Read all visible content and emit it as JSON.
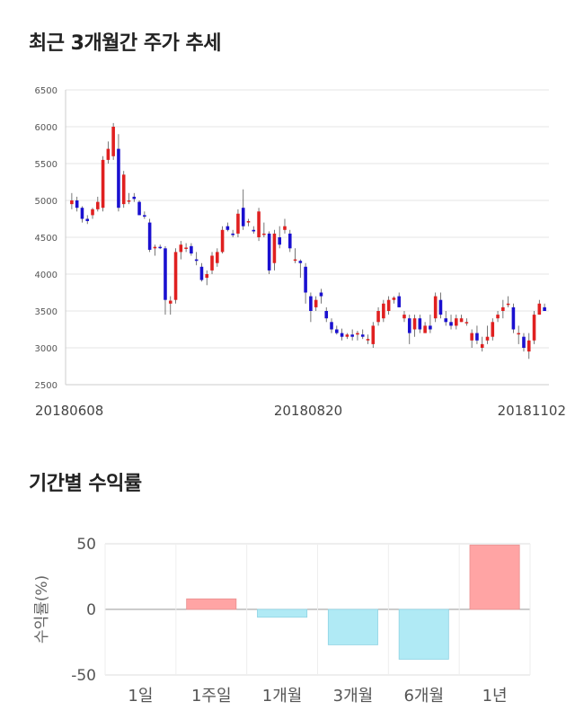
{
  "titles": {
    "price_trend": "최근 3개월간 주가 추세",
    "period_returns": "기간별 수익률"
  },
  "chart_data": [
    {
      "type": "candlestick",
      "ylim": [
        2500,
        6500
      ],
      "y_ticks": [
        2500,
        3000,
        3500,
        4000,
        4500,
        5000,
        5500,
        6000,
        6500
      ],
      "x_tick_labels": [
        "20180608",
        "20180820",
        "20181102"
      ],
      "up_color": "#e02020",
      "down_color": "#1a10d0",
      "grid": true,
      "candles": [
        [
          4950,
          5100,
          4880,
          5000
        ],
        [
          5000,
          5050,
          4850,
          4900
        ],
        [
          4900,
          4920,
          4700,
          4750
        ],
        [
          4750,
          4800,
          4680,
          4720
        ],
        [
          4800,
          4900,
          4750,
          4880
        ],
        [
          4880,
          5050,
          4850,
          4980
        ],
        [
          4900,
          5600,
          4850,
          5550
        ],
        [
          5550,
          5800,
          5500,
          5700
        ],
        [
          5600,
          6050,
          5550,
          6000
        ],
        [
          5700,
          5900,
          4850,
          4900
        ],
        [
          4950,
          5400,
          4900,
          5350
        ],
        [
          5000,
          5100,
          4950,
          5000
        ],
        [
          5050,
          5100,
          4980,
          5020
        ],
        [
          4980,
          5000,
          4800,
          4800
        ],
        [
          4800,
          4850,
          4750,
          4780
        ],
        [
          4700,
          4750,
          4300,
          4330
        ],
        [
          4350,
          4400,
          4250,
          4370
        ],
        [
          4370,
          4400,
          4340,
          4360
        ],
        [
          4350,
          4380,
          3450,
          3650
        ],
        [
          3600,
          3700,
          3450,
          3640
        ],
        [
          3650,
          4350,
          3600,
          4300
        ],
        [
          4300,
          4450,
          4200,
          4400
        ],
        [
          4350,
          4420,
          4300,
          4360
        ],
        [
          4380,
          4420,
          4250,
          4280
        ],
        [
          4200,
          4300,
          4120,
          4180
        ],
        [
          4100,
          4150,
          3900,
          3920
        ],
        [
          3950,
          4050,
          3850,
          4000
        ],
        [
          4050,
          4300,
          4000,
          4250
        ],
        [
          4150,
          4350,
          4100,
          4300
        ],
        [
          4300,
          4650,
          4280,
          4600
        ],
        [
          4650,
          4700,
          4580,
          4600
        ],
        [
          4550,
          4600,
          4500,
          4530
        ],
        [
          4550,
          4880,
          4500,
          4820
        ],
        [
          4900,
          5150,
          4600,
          4650
        ],
        [
          4700,
          4750,
          4650,
          4720
        ],
        [
          4600,
          4650,
          4550,
          4580
        ],
        [
          4500,
          4900,
          4450,
          4850
        ],
        [
          4550,
          4700,
          4500,
          4550
        ],
        [
          4550,
          4580,
          4000,
          4050
        ],
        [
          4150,
          4600,
          4050,
          4550
        ],
        [
          4500,
          4650,
          4350,
          4400
        ],
        [
          4600,
          4750,
          4550,
          4650
        ],
        [
          4550,
          4600,
          4300,
          4350
        ],
        [
          4200,
          4350,
          4150,
          4200
        ],
        [
          4180,
          4200,
          3950,
          4150
        ],
        [
          4100,
          4150,
          3600,
          3750
        ],
        [
          3700,
          3750,
          3350,
          3500
        ],
        [
          3550,
          3700,
          3500,
          3650
        ],
        [
          3750,
          3800,
          3600,
          3700
        ],
        [
          3500,
          3550,
          3350,
          3400
        ],
        [
          3350,
          3400,
          3200,
          3250
        ],
        [
          3250,
          3300,
          3180,
          3200
        ],
        [
          3200,
          3260,
          3100,
          3150
        ],
        [
          3150,
          3200,
          3120,
          3180
        ],
        [
          3180,
          3250,
          3100,
          3150
        ],
        [
          3180,
          3230,
          3100,
          3200
        ],
        [
          3180,
          3250,
          3120,
          3150
        ],
        [
          3100,
          3180,
          3050,
          3120
        ],
        [
          3050,
          3350,
          3000,
          3300
        ],
        [
          3350,
          3550,
          3300,
          3500
        ],
        [
          3400,
          3650,
          3350,
          3600
        ],
        [
          3500,
          3700,
          3450,
          3650
        ],
        [
          3650,
          3700,
          3600,
          3680
        ],
        [
          3700,
          3750,
          3550,
          3550
        ],
        [
          3400,
          3500,
          3350,
          3450
        ],
        [
          3400,
          3450,
          3050,
          3200
        ],
        [
          3250,
          3450,
          3150,
          3400
        ],
        [
          3400,
          3450,
          3200,
          3250
        ],
        [
          3200,
          3350,
          3200,
          3300
        ],
        [
          3300,
          3450,
          3200,
          3250
        ],
        [
          3400,
          3750,
          3350,
          3700
        ],
        [
          3650,
          3750,
          3400,
          3450
        ],
        [
          3400,
          3500,
          3300,
          3350
        ],
        [
          3350,
          3450,
          3250,
          3300
        ],
        [
          3300,
          3450,
          3250,
          3400
        ],
        [
          3350,
          3450,
          3350,
          3400
        ],
        [
          3350,
          3400,
          3300,
          3350
        ],
        [
          3100,
          3250,
          3000,
          3200
        ],
        [
          3200,
          3300,
          3050,
          3100
        ],
        [
          3000,
          3150,
          2950,
          3050
        ],
        [
          3100,
          3300,
          3050,
          3150
        ],
        [
          3150,
          3400,
          3100,
          3350
        ],
        [
          3400,
          3500,
          3350,
          3450
        ],
        [
          3500,
          3650,
          3400,
          3550
        ],
        [
          3600,
          3700,
          3550,
          3600
        ],
        [
          3550,
          3600,
          3200,
          3250
        ],
        [
          3200,
          3300,
          3050,
          3200
        ],
        [
          3150,
          3200,
          2950,
          3000
        ],
        [
          2950,
          3200,
          2850,
          3100
        ],
        [
          3100,
          3500,
          3050,
          3450
        ],
        [
          3450,
          3650,
          3450,
          3600
        ],
        [
          3550,
          3600,
          3500,
          3500
        ]
      ]
    },
    {
      "type": "bar",
      "categories": [
        "1일",
        "1주일",
        "1개월",
        "3개월",
        "6개월",
        "1년"
      ],
      "values": [
        0,
        8,
        -6,
        -27,
        -38,
        49
      ],
      "ylim": [
        -50,
        50
      ],
      "y_ticks": [
        -50,
        0,
        50
      ],
      "ylabel": "수익률(%)",
      "positive_color": "#ffa4a4",
      "negative_color": "#b0eaf5",
      "grid": true
    }
  ]
}
